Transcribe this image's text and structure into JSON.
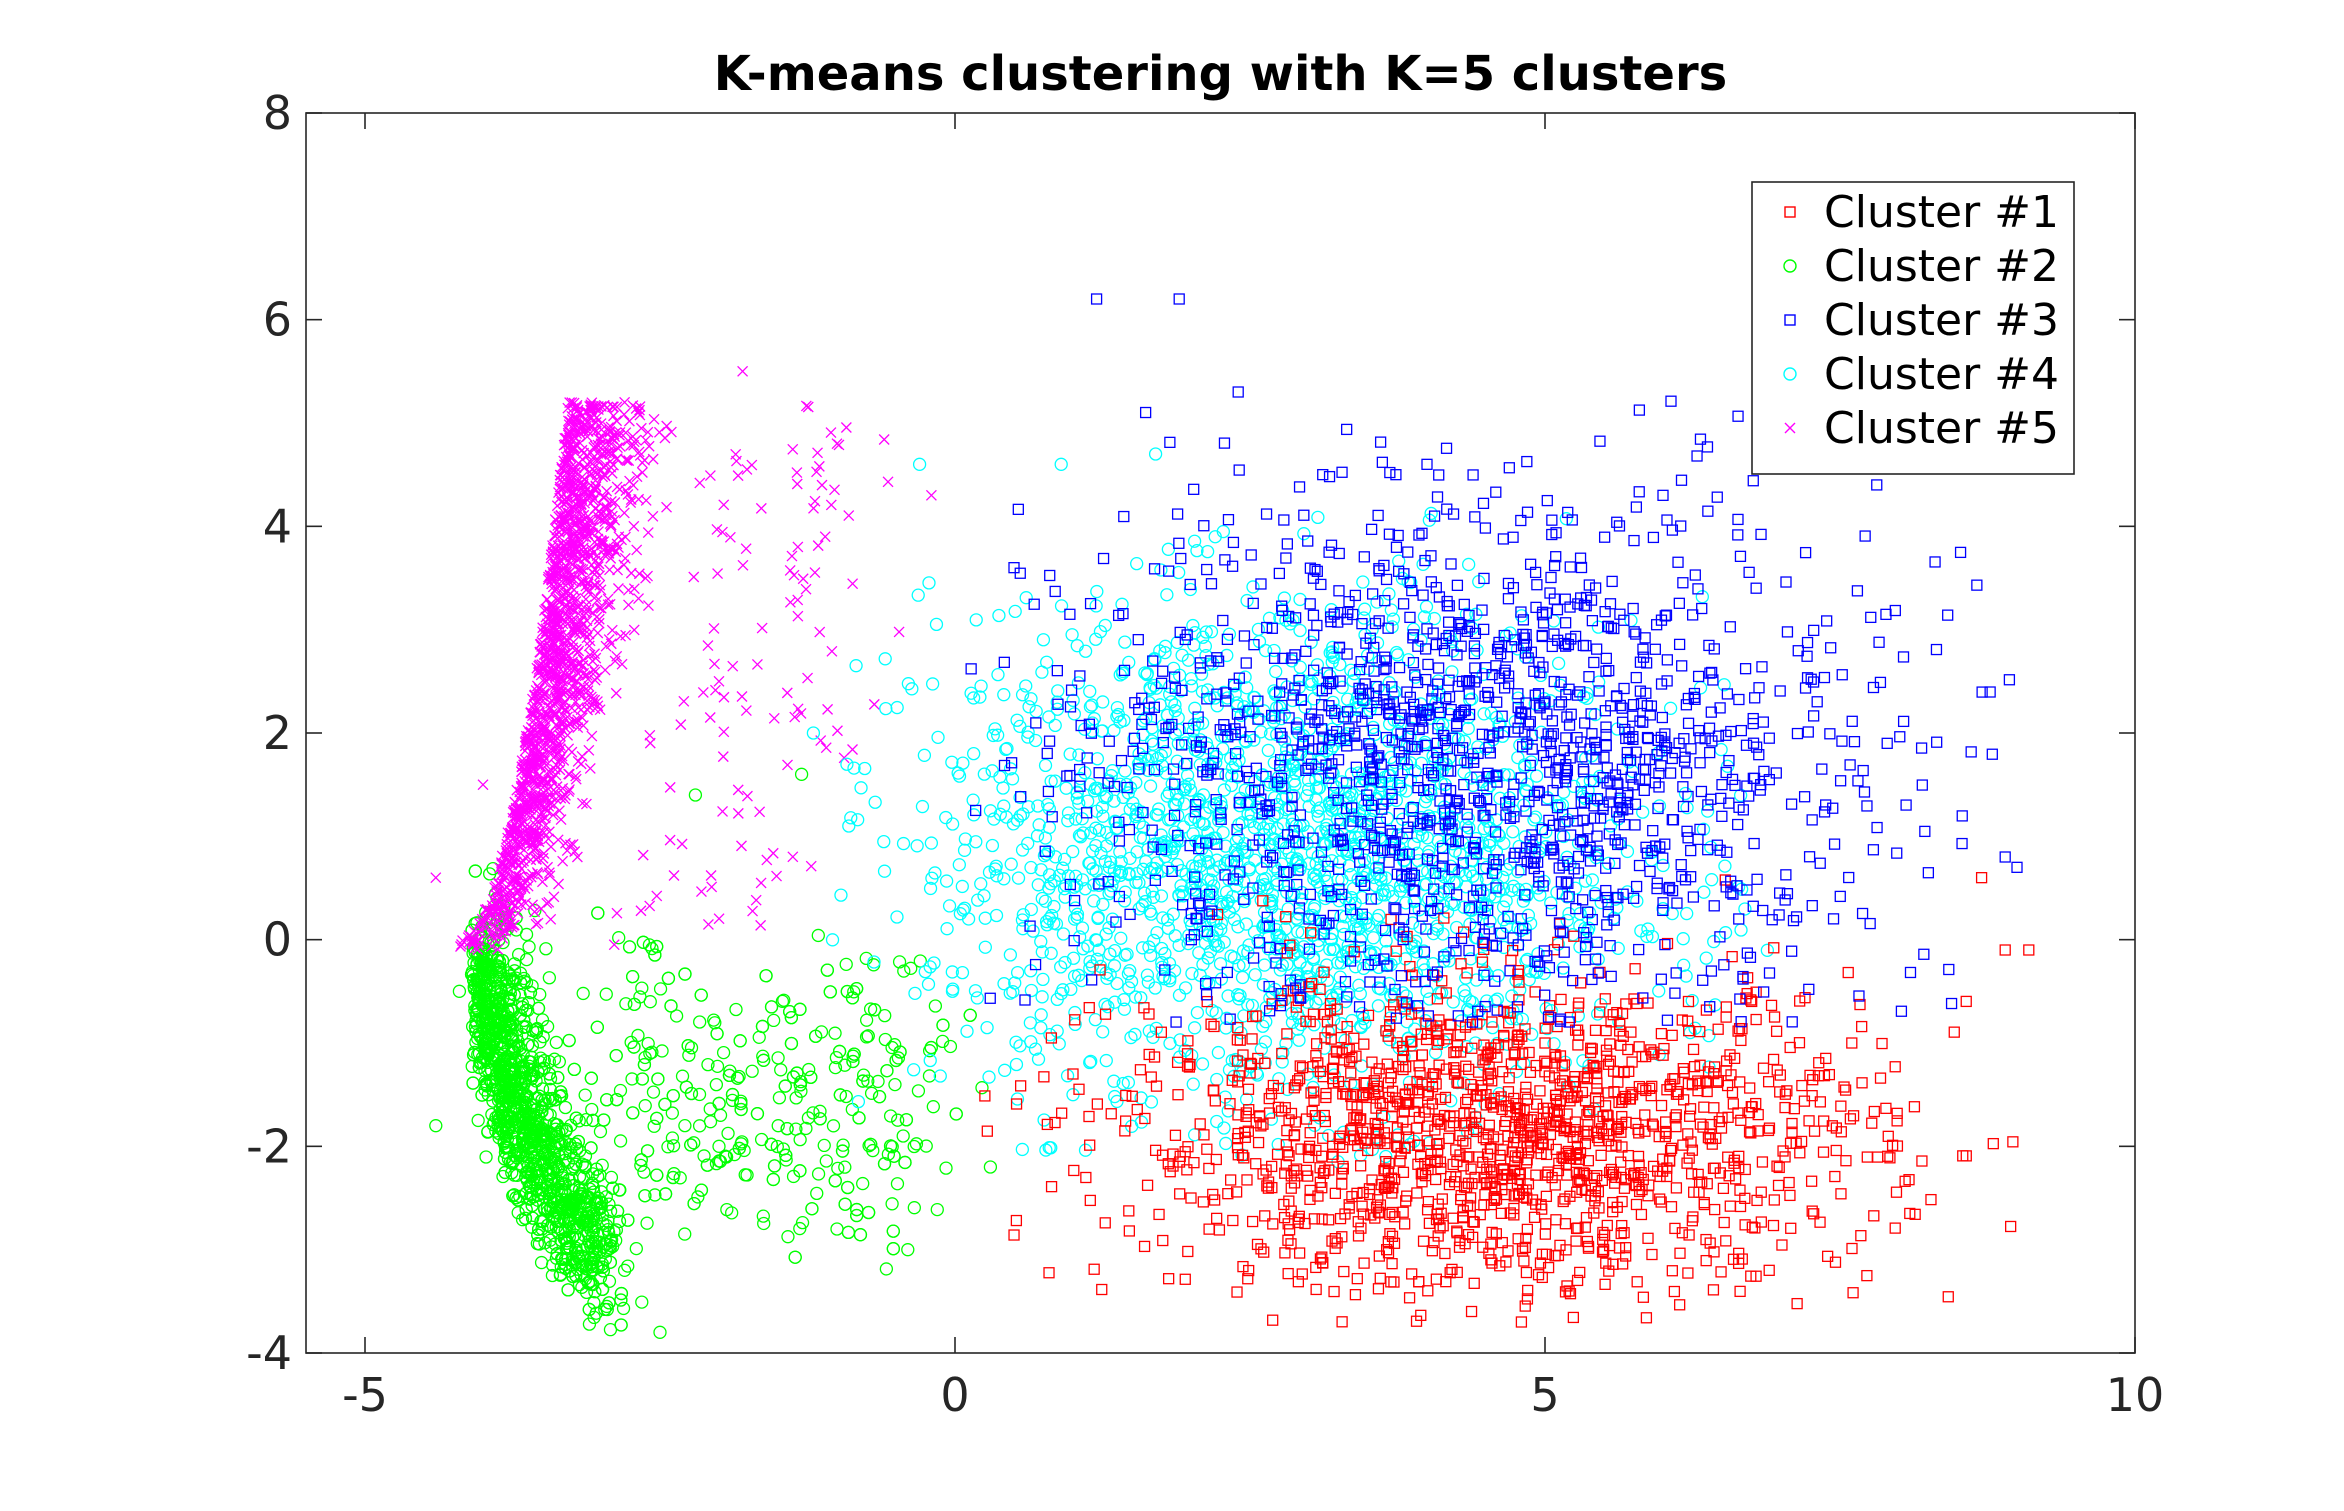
{
  "chart_data": {
    "type": "scatter",
    "title": "K-means clustering with K=5 clusters",
    "xlabel": "",
    "ylabel": "",
    "xlim": [
      -5.5,
      10
    ],
    "ylim": [
      -4,
      8
    ],
    "x_ticks": [
      -5,
      0,
      5,
      10
    ],
    "y_ticks": [
      -4,
      -2,
      0,
      2,
      4,
      6,
      8
    ],
    "x_tick_labels": [
      "-5",
      "0",
      "5",
      "10"
    ],
    "y_tick_labels": [
      "-4",
      "-2",
      "0",
      "2",
      "4",
      "6",
      "8"
    ],
    "grid": false,
    "legend_position": "top-right",
    "series": [
      {
        "name": "Cluster #1",
        "color": "#ff0000",
        "marker": "square",
        "point_count": 1500,
        "center": [
          4.6,
          -1.9
        ],
        "spread": [
          1.6,
          0.75
        ],
        "x_range": [
          0.0,
          9.1
        ],
        "y_range": [
          -3.7,
          0.6
        ],
        "sample_points": [
          [
            4.5,
            -1.5
          ],
          [
            3.2,
            -2.0
          ],
          [
            5.6,
            -2.3
          ],
          [
            7.6,
            -1.0
          ],
          [
            8.9,
            -0.1
          ],
          [
            9.1,
            -0.1
          ],
          [
            1.0,
            -1.3
          ],
          [
            4.8,
            -3.7
          ],
          [
            6.9,
            -3.2
          ],
          [
            8.7,
            0.6
          ],
          [
            2.0,
            -2.5
          ],
          [
            5.0,
            -1.0
          ]
        ]
      },
      {
        "name": "Cluster #2",
        "color": "#00ff00",
        "marker": "circle",
        "point_count": 2000,
        "center": [
          -3.5,
          -2.2
        ],
        "spread": [
          0.9,
          1.1
        ],
        "x_range": [
          -4.5,
          0.6
        ],
        "y_range": [
          -3.8,
          1.6
        ],
        "sample_points": [
          [
            -4.2,
            -0.5
          ],
          [
            -3.5,
            -2.8
          ],
          [
            -2.8,
            -3.2
          ],
          [
            -2.0,
            -2.0
          ],
          [
            -1.0,
            -2.8
          ],
          [
            -0.4,
            -3.0
          ],
          [
            0.3,
            -2.2
          ],
          [
            -2.2,
            1.4
          ],
          [
            -1.3,
            1.6
          ],
          [
            -4.4,
            -1.8
          ],
          [
            -2.5,
            -3.8
          ]
        ]
      },
      {
        "name": "Cluster #3",
        "color": "#0000ff",
        "marker": "square",
        "point_count": 1500,
        "center": [
          4.4,
          1.8
        ],
        "spread": [
          1.7,
          1.2
        ],
        "x_range": [
          0.1,
          9.0
        ],
        "y_range": [
          -1.0,
          6.3
        ],
        "sample_points": [
          [
            1.2,
            6.2
          ],
          [
            1.9,
            6.2
          ],
          [
            2.4,
            5.3
          ],
          [
            4.0,
            4.6
          ],
          [
            5.0,
            2.3
          ],
          [
            6.5,
            1.5
          ],
          [
            8.9,
            0.8
          ],
          [
            9.0,
            0.7
          ],
          [
            7.9,
            1.9
          ],
          [
            6.0,
            4.3
          ],
          [
            0.5,
            3.6
          ],
          [
            3.0,
            0.2
          ]
        ]
      },
      {
        "name": "Cluster #4",
        "color": "#00ffff",
        "marker": "circle",
        "point_count": 2000,
        "center": [
          2.8,
          0.8
        ],
        "spread": [
          1.5,
          1.2
        ],
        "x_range": [
          -1.2,
          7.0
        ],
        "y_range": [
          -2.2,
          4.7
        ],
        "sample_points": [
          [
            1.7,
            4.7
          ],
          [
            -0.3,
            4.6
          ],
          [
            0.9,
            4.6
          ],
          [
            -1.2,
            2.0
          ],
          [
            -0.9,
            1.1
          ],
          [
            2.0,
            0.5
          ],
          [
            4.0,
            -0.5
          ],
          [
            6.0,
            0.3
          ],
          [
            1.0,
            -1.5
          ],
          [
            3.0,
            2.5
          ]
        ]
      },
      {
        "name": "Cluster #5",
        "color": "#ff00ff",
        "marker": "x",
        "point_count": 1600,
        "center": [
          -3.6,
          2.8
        ],
        "spread": [
          0.45,
          1.1
        ],
        "x_range": [
          -4.6,
          0.0
        ],
        "y_range": [
          -0.2,
          5.5
        ],
        "sample_points": [
          [
            -1.8,
            5.5
          ],
          [
            -2.8,
            5.2
          ],
          [
            -3.0,
            4.8
          ],
          [
            -1.0,
            4.8
          ],
          [
            -0.2,
            4.3
          ],
          [
            -1.1,
            3.9
          ],
          [
            -4.4,
            0.6
          ],
          [
            -3.2,
            0.8
          ],
          [
            -2.0,
            2.5
          ],
          [
            -4.0,
            1.5
          ]
        ]
      }
    ]
  }
}
